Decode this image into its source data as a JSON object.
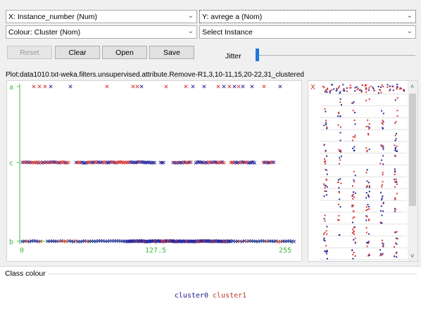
{
  "controls": {
    "x_axis": "X: Instance_number (Num)",
    "y_axis": "Y: avrege a (Nom)",
    "colour": "Colour: Cluster (Nom)",
    "select_instance": "Select Instance",
    "reset_label": "Reset",
    "clear_label": "Clear",
    "open_label": "Open",
    "save_label": "Save",
    "jitter_label": "Jitter",
    "jitter_value": 0
  },
  "plot_title": "Plot:data1010.txt-weka.filters.unsupervised.attribute.Remove-R1,3,10-11,15,20-22,31_clustered",
  "chart_data": {
    "type": "scatter",
    "x_ticks": [
      "0",
      "127.5",
      "255"
    ],
    "xlim": [
      0,
      255
    ],
    "y_categories": [
      "a",
      "c",
      "b"
    ],
    "marker": "x"
  },
  "matrix": {
    "class_label": "X"
  },
  "class_colour": {
    "title": "Class colour",
    "legend": [
      {
        "label": "cluster0",
        "color": "#1a1a8c"
      },
      {
        "label": "cluster1",
        "color": "#c0392b"
      }
    ]
  },
  "colors": {
    "cluster0": "#2b2b9e",
    "cluster1": "#d63a3a",
    "axis": "#3dbb3d",
    "accent": "#1e78d7"
  }
}
